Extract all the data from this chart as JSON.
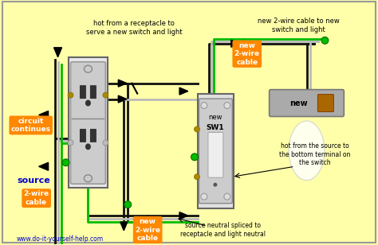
{
  "bg_color": "#FFFFAA",
  "colors": {
    "black_wire": "#111111",
    "white_wire": "#BBBBBB",
    "green_wire": "#00BB00",
    "orange_label": "#FF8800",
    "blue_text": "#0000CC",
    "outlet_gray": "#AAAAAA",
    "outlet_dark": "#555555",
    "switch_gray": "#BBBBBB",
    "light_gray": "#999999",
    "bulb_color": "#FFFFEE",
    "brown_wire": "#884400"
  },
  "labels": {
    "hot_from_receptacle": "hot from a receptacle to\nserve a new switch and light",
    "new_2wire_top": "new 2-wire cable to new\nswitch and light",
    "circuit_continues": "circuit\ncontinues",
    "source": "source",
    "source_2wire": "2-wire\ncable",
    "new_2wire_right": "new\n2-wire\ncable",
    "new_2wire_bottom": "new\n2-wire\ncable",
    "new_sw": "new",
    "sw1": "SW1",
    "new_light": "new",
    "hot_from_source": "hot from the source to\nthe bottom terminal on\nthe switch",
    "source_neutral": "source neutral spliced to\nreceptacle and light neutral",
    "website": "www.do-it-yourself-help.com"
  }
}
